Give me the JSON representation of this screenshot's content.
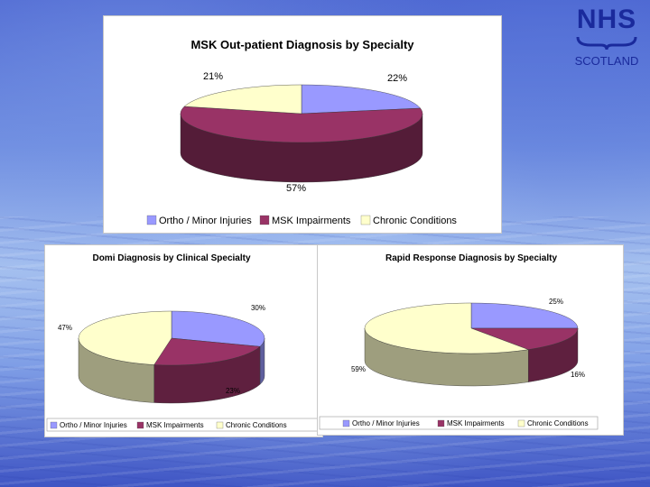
{
  "logo": {
    "name": "NHS",
    "subtitle": "SCOTLAND"
  },
  "colors": {
    "ortho": "#9999ff",
    "msk": "#993366",
    "chronic": "#ffffcc"
  },
  "chart_data": [
    {
      "type": "pie",
      "title": "MSK Out-patient Diagnosis by Specialty",
      "categories": [
        "Ortho / Minor Injuries",
        "MSK Impairments",
        "Chronic Conditions"
      ],
      "values": [
        22,
        57,
        21
      ],
      "value_labels": [
        "22%",
        "57%",
        "21%"
      ],
      "legend": "bottom"
    },
    {
      "type": "pie",
      "title": "Domi Diagnosis by Clinical Specialty",
      "categories": [
        "Ortho / Minor Injuries",
        "MSK Impairments",
        "Chronic Conditions"
      ],
      "values": [
        30,
        23,
        47
      ],
      "value_labels": [
        "30%",
        "23%",
        "47%"
      ],
      "legend": "bottom"
    },
    {
      "type": "pie",
      "title": "Rapid Response Diagnosis by Specialty",
      "categories": [
        "Ortho / Minor Injuries",
        "MSK Impairments",
        "Chronic Conditions"
      ],
      "values": [
        25,
        16,
        59
      ],
      "value_labels": [
        "25%",
        "16%",
        "59%"
      ],
      "legend": "bottom"
    }
  ]
}
